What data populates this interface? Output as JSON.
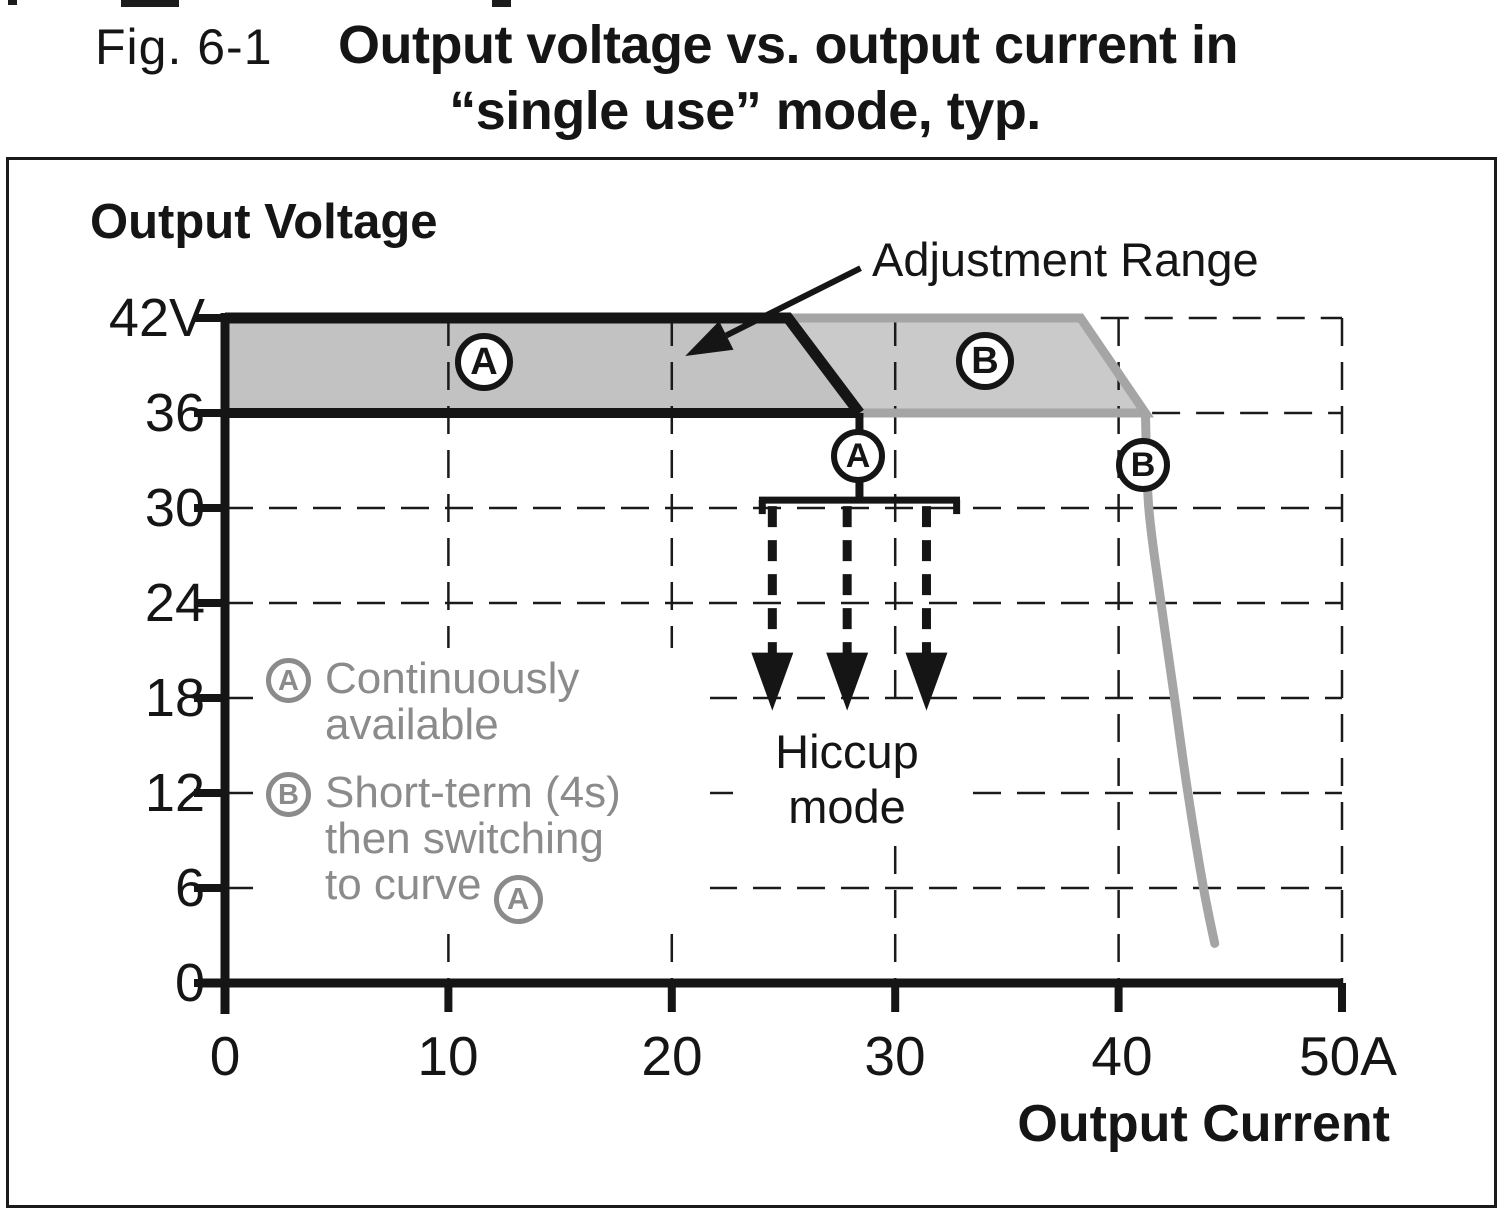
{
  "page": {
    "title_fig": "Fig. 6-1",
    "title_line1": "Output voltage vs. output current in",
    "title_line2": "“single use” mode, typ."
  },
  "chart": {
    "y_axis_title": "Output Voltage",
    "x_axis_title": "Output Current",
    "y_ticks": [
      "42V",
      "36",
      "30",
      "24",
      "18",
      "12",
      "6",
      "0"
    ],
    "x_ticks": [
      "0",
      "10",
      "20",
      "30",
      "40",
      "50A"
    ],
    "adjustment_range_label": "Adjustment Range",
    "hiccup_line1": "Hiccup",
    "hiccup_line2": "mode",
    "markers": {
      "band_a": "A",
      "band_b": "B",
      "limit_a": "A",
      "limit_b": "B"
    },
    "legend": {
      "a_symbol": "A",
      "a_line1": "Continuously",
      "a_line2": "available",
      "b_symbol": "B",
      "b_line1": "Short-term (4s)",
      "b_line2": "then switching",
      "b_line3": "to curve",
      "b_trailing_symbol": "A"
    }
  },
  "chart_data": {
    "type": "area",
    "title": "Output voltage vs. output current in “single use” mode, typ.",
    "xlabel": "Output Current",
    "ylabel": "Output Voltage",
    "x_unit": "A",
    "y_unit": "V",
    "xlim": [
      0,
      50
    ],
    "ylim": [
      0,
      42
    ],
    "x_tick_values": [
      0,
      10,
      20,
      30,
      40,
      50
    ],
    "y_tick_values": [
      0,
      6,
      12,
      18,
      24,
      30,
      36,
      42
    ],
    "grid": "dashed",
    "series": [
      {
        "name": "A",
        "meaning": "Continuously available",
        "color": "black",
        "upper": [
          [
            0,
            42
          ],
          [
            25.2,
            42
          ],
          [
            28.4,
            36
          ]
        ],
        "lower_y": 36
      },
      {
        "name": "B",
        "meaning": "Short-term (4s) then switching to curve A",
        "color": "gray",
        "upper": [
          [
            25.2,
            42
          ],
          [
            38.3,
            42
          ],
          [
            41.2,
            36
          ]
        ],
        "lower_y": 36,
        "overload_curve": [
          [
            41.2,
            36
          ],
          [
            41.35,
            30
          ],
          [
            41.9,
            24
          ],
          [
            42.5,
            18
          ],
          [
            43.1,
            12
          ],
          [
            43.8,
            6
          ],
          [
            44.3,
            2.5
          ]
        ]
      }
    ],
    "hiccup": {
      "label": "Hiccup mode",
      "bar_y": 30.5,
      "bar_x_range": [
        23.9,
        32.9
      ],
      "arrows_x": [
        24.5,
        27.85,
        31.4
      ],
      "arrows_tip_y": 17.2
    },
    "partial_gridlines": [
      {
        "y": 42,
        "x_from": 39.2,
        "x_to": 50
      },
      {
        "y": 36,
        "x_from": 41.5,
        "x_to": 50
      }
    ],
    "annotations": {
      "band_a_marker": {
        "x": 11.6,
        "y": 39.2
      },
      "band_b_marker": {
        "x": 34.0,
        "y": 39.3
      },
      "limit_a_marker": {
        "x": 28.35,
        "y": 33.3
      },
      "limit_b_marker": {
        "x": 41.1,
        "y": 32.7
      },
      "adjustment_arrow_from": [
        28.45,
        45.15
      ],
      "adjustment_arrow_to": [
        20.6,
        39.6
      ]
    }
  },
  "colors": {
    "ink": "#151515",
    "band_a_fill": "#c2c2c2",
    "band_b_fill": "#cacaca",
    "gray_stroke": "#a5a5a5",
    "legend_gray": "#8b8b8b",
    "grid": "#1a1a1a"
  }
}
